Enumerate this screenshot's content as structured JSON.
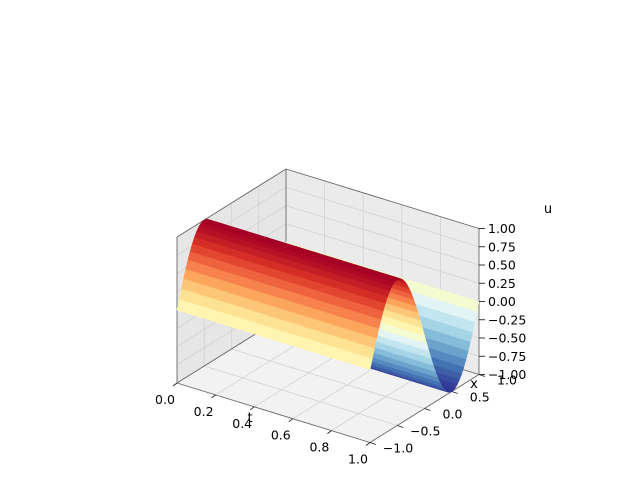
{
  "chart_data": {
    "type": "surface",
    "title": "",
    "xlabel": "t",
    "ylabel": "x",
    "zlabel": "u",
    "t_range": [
      0,
      1
    ],
    "x_range": [
      -1,
      1
    ],
    "u_range": [
      -1,
      1
    ],
    "t_ticks": [
      "0.0",
      "0.2",
      "0.4",
      "0.6",
      "0.8",
      "1.0"
    ],
    "x_ticks": [
      "−1.0",
      "−0.5",
      "0.0",
      "0.5",
      "1.0"
    ],
    "u_ticks": [
      "−1.00",
      "−0.75",
      "−0.50",
      "−0.25",
      "0.00",
      "0.25",
      "0.50",
      "0.75",
      "1.00"
    ],
    "function": "u(t, x) = -sin(π x), constant along t",
    "colormap": "RdYlBu_r",
    "grid": true,
    "pane_colors": [
      "#f2f2f2",
      "#e6e6e6",
      "#ebebeb"
    ]
  }
}
